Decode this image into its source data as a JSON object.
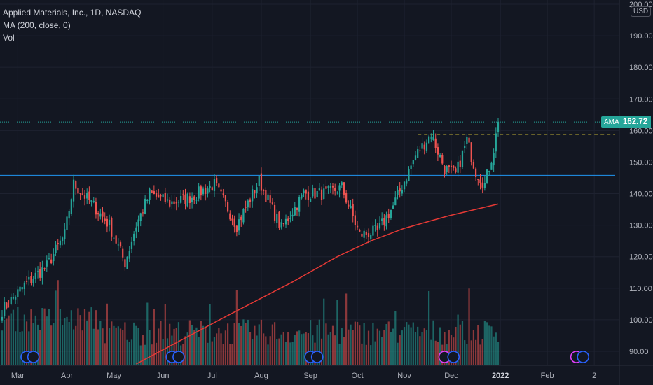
{
  "legend": {
    "title": "Applied Materials, Inc., 1D, NASDAQ",
    "ma": "MA (200, close, 0)",
    "vol": "Vol"
  },
  "price_tag": {
    "symbol": "AMAT",
    "value": "162.72"
  },
  "currency": "USD",
  "colors": {
    "background": "#131722",
    "up": "#26a69a",
    "down": "#ef5350",
    "ma": "#e53935",
    "support": "#2196f3",
    "resistance": "#f5e03a",
    "grid": "#1e2230",
    "event_earnings": "#2962ff",
    "event_dividend": "#e040fb"
  },
  "chart_data": {
    "type": "candlestick",
    "title": "Applied Materials, Inc., 1D, NASDAQ",
    "y_ticks": [
      90,
      100,
      110,
      120,
      130,
      140,
      150,
      160,
      170,
      180,
      190,
      200
    ],
    "y_tick_labels": [
      "90.00",
      "100.00",
      "110.00",
      "120.00",
      "130.00",
      "140.00",
      "150.00",
      "160.00",
      "170.00",
      "180.00",
      "190.00",
      "200.00"
    ],
    "ylim": [
      86,
      200
    ],
    "x_tick_labels": [
      "Mar",
      "Apr",
      "May",
      "Jun",
      "Jul",
      "Aug",
      "Sep",
      "Oct",
      "Nov",
      "Dec",
      "2022",
      "Feb",
      "2"
    ],
    "x_tick_day_index": [
      7,
      29,
      50,
      72,
      94,
      116,
      138,
      159,
      180,
      201,
      223,
      244,
      265
    ],
    "bars_total": 223,
    "last_price": 162.72,
    "horizontal_lines": [
      {
        "name": "support",
        "value": 145.8,
        "style": "solid"
      },
      {
        "name": "resistance",
        "value": 158.8,
        "style": "dashed"
      }
    ],
    "ma_200": {
      "name": "MA (200, close, 0)",
      "points": [
        [
          60,
          86
        ],
        [
          100,
          101
        ],
        [
          130,
          112
        ],
        [
          150,
          120
        ],
        [
          165,
          125
        ],
        [
          180,
          129
        ],
        [
          200,
          133
        ],
        [
          222,
          136.7
        ]
      ]
    },
    "close_keypoints": [
      [
        0,
        103
      ],
      [
        10,
        111
      ],
      [
        20,
        117
      ],
      [
        28,
        127
      ],
      [
        32,
        143
      ],
      [
        40,
        137
      ],
      [
        48,
        130
      ],
      [
        55,
        118
      ],
      [
        60,
        130
      ],
      [
        66,
        140
      ],
      [
        75,
        137
      ],
      [
        85,
        139
      ],
      [
        95,
        143
      ],
      [
        105,
        130
      ],
      [
        115,
        144
      ],
      [
        125,
        129
      ],
      [
        135,
        140
      ],
      [
        145,
        140
      ],
      [
        152,
        142
      ],
      [
        160,
        127
      ],
      [
        168,
        128
      ],
      [
        175,
        136
      ],
      [
        185,
        152
      ],
      [
        192,
        159
      ],
      [
        198,
        148
      ],
      [
        203,
        146
      ],
      [
        208,
        157
      ],
      [
        212,
        147
      ],
      [
        216,
        143
      ],
      [
        220,
        154
      ],
      [
        222,
        162.7
      ]
    ],
    "volume_ylim": [
      0,
      100
    ],
    "events": [
      {
        "day": 11,
        "type": "earnings"
      },
      {
        "day": 14,
        "type": "earnings"
      },
      {
        "day": 76,
        "type": "earnings"
      },
      {
        "day": 79,
        "type": "earnings"
      },
      {
        "day": 138,
        "type": "earnings"
      },
      {
        "day": 141,
        "type": "earnings"
      },
      {
        "day": 198,
        "type": "dividend"
      },
      {
        "day": 202,
        "type": "earnings"
      },
      {
        "day": 257,
        "type": "dividend"
      },
      {
        "day": 260,
        "type": "earnings"
      }
    ]
  }
}
